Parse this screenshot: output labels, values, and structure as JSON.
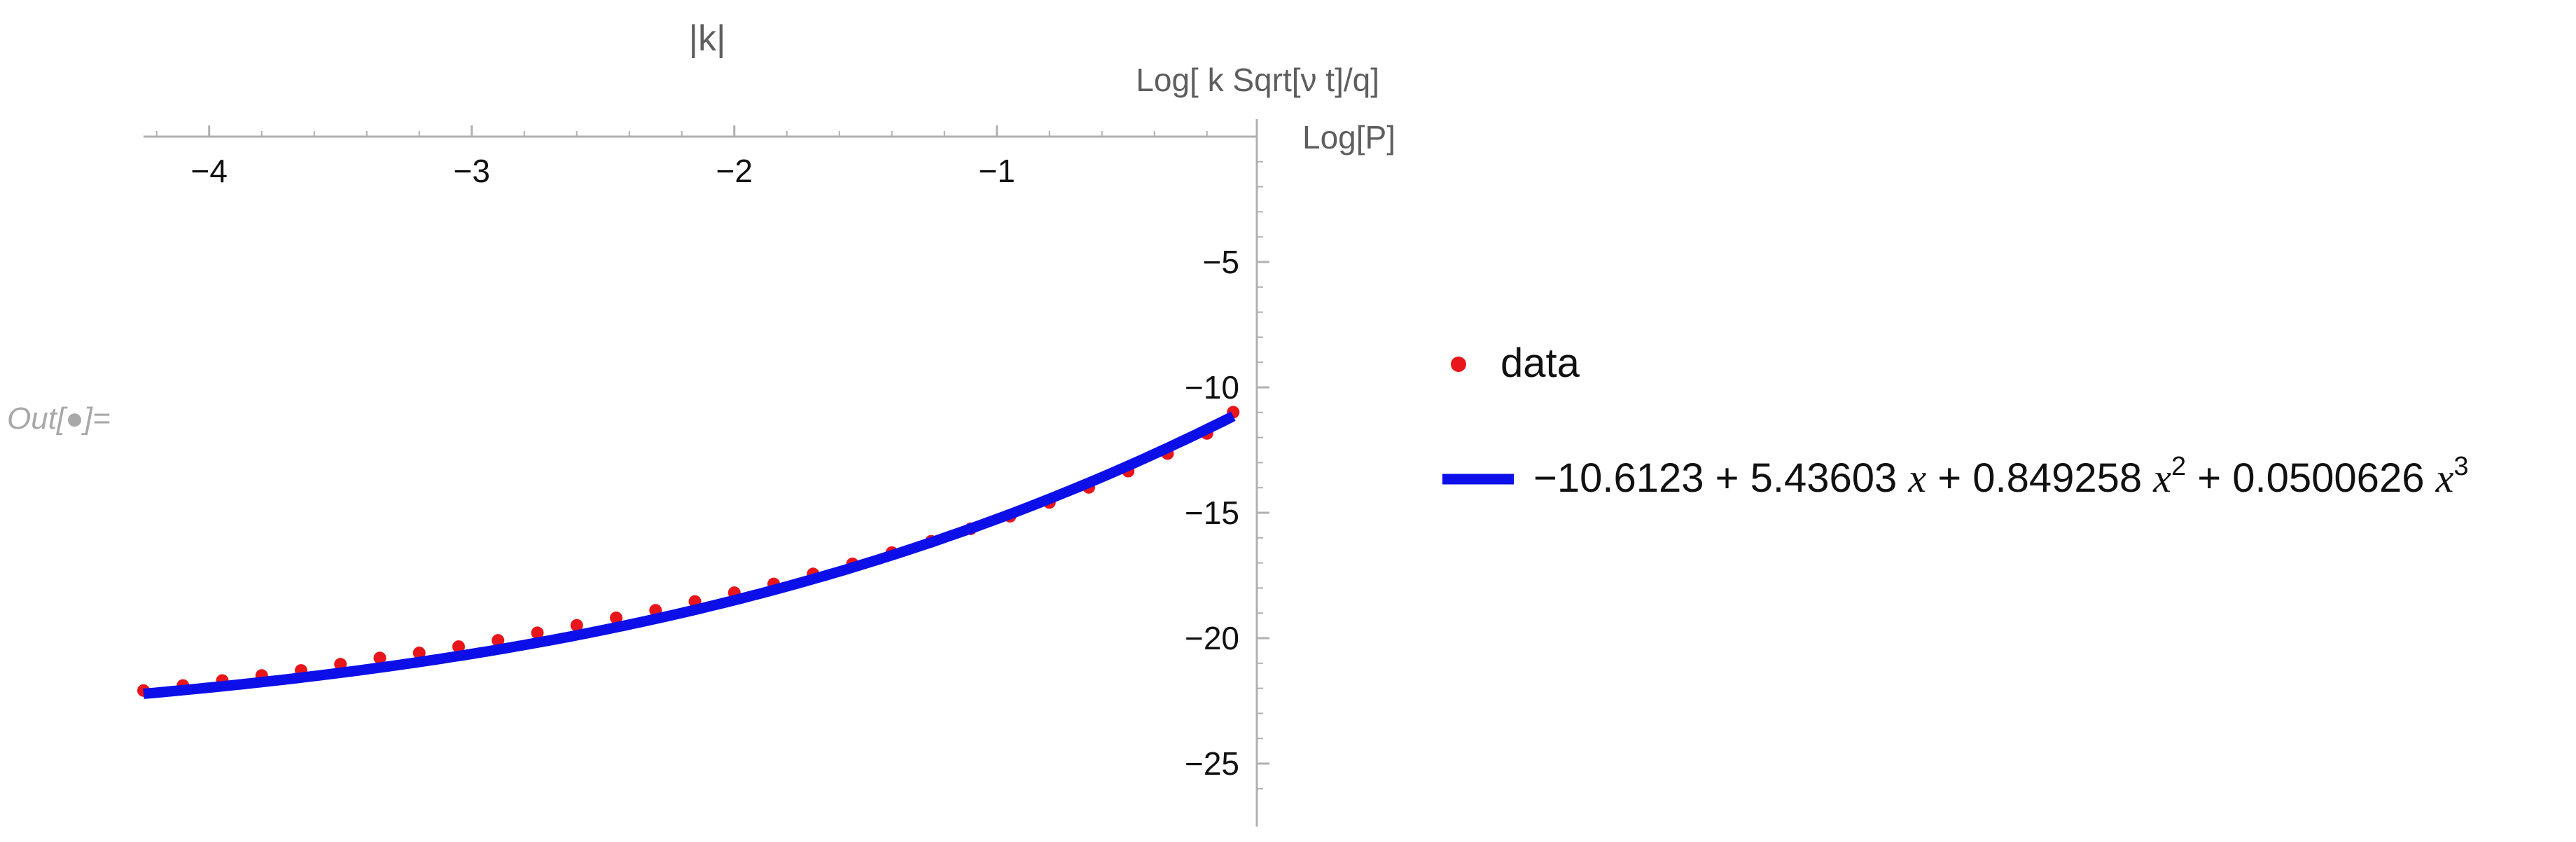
{
  "notebook": {
    "out_label": "Out[●]="
  },
  "chart_data": {
    "type": "scatter",
    "title": "|k|",
    "xlabel": "Log[ k Sqrt[ν t]/q]",
    "ylabel": "Log[P]",
    "xlim": [
      -4.25,
      0.0
    ],
    "ylim": [
      -27.0,
      0.0
    ],
    "x_ticks": [
      -4,
      -3,
      -2,
      -1
    ],
    "x_tick_labels": [
      "−4",
      "−3",
      "−2",
      "−1"
    ],
    "y_ticks": [
      -5,
      -10,
      -15,
      -20,
      -25
    ],
    "y_tick_labels": [
      "−5",
      "−10",
      "−15",
      "−20",
      "−25"
    ],
    "x_axis_position": "top",
    "y_axis_position": "right",
    "grid": false,
    "legend_position": "right",
    "colors": {
      "data": "#e8151a",
      "fit": "#0d0fe8",
      "axis": "#b0b0b0"
    },
    "series": [
      {
        "name": "data",
        "kind": "scatter",
        "x": [
          -4.25,
          -4.1,
          -3.95,
          -3.8,
          -3.65,
          -3.5,
          -3.35,
          -3.2,
          -3.05,
          -2.9,
          -2.75,
          -2.6,
          -2.45,
          -2.3,
          -2.15,
          -2.0,
          -1.85,
          -1.7,
          -1.55,
          -1.4,
          -1.25,
          -1.1,
          -0.95,
          -0.8,
          -0.65,
          -0.5,
          -0.35,
          -0.2,
          -0.1
        ],
        "y": [
          -22.2,
          -22.0,
          -21.8,
          -21.6,
          -21.4,
          -21.15,
          -20.9,
          -20.7,
          -20.45,
          -20.2,
          -19.9,
          -19.6,
          -19.3,
          -19.0,
          -18.65,
          -18.3,
          -17.95,
          -17.55,
          -17.15,
          -16.7,
          -16.25,
          -15.75,
          -15.25,
          -14.7,
          -14.1,
          -13.45,
          -12.75,
          -11.95,
          -11.1
        ]
      },
      {
        "name": "−10.6123 + 5.43603 x + 0.849258 x² + 0.0500626 x³",
        "kind": "line",
        "formula": {
          "c0": -10.6123,
          "c1": 5.43603,
          "c2": 0.849258,
          "c3": 0.0500626
        },
        "x_range": [
          -4.25,
          -0.1
        ]
      }
    ]
  },
  "legend": {
    "data_label": "data",
    "fit_label_parts": {
      "c0": "−10.6123",
      "plus1": " + 5.43603 ",
      "x1": "x",
      "plus2": " + 0.849258 ",
      "x2": "x",
      "exp2": "2",
      "plus3": " + 0.0500626 ",
      "x3": "x",
      "exp3": "3"
    }
  }
}
